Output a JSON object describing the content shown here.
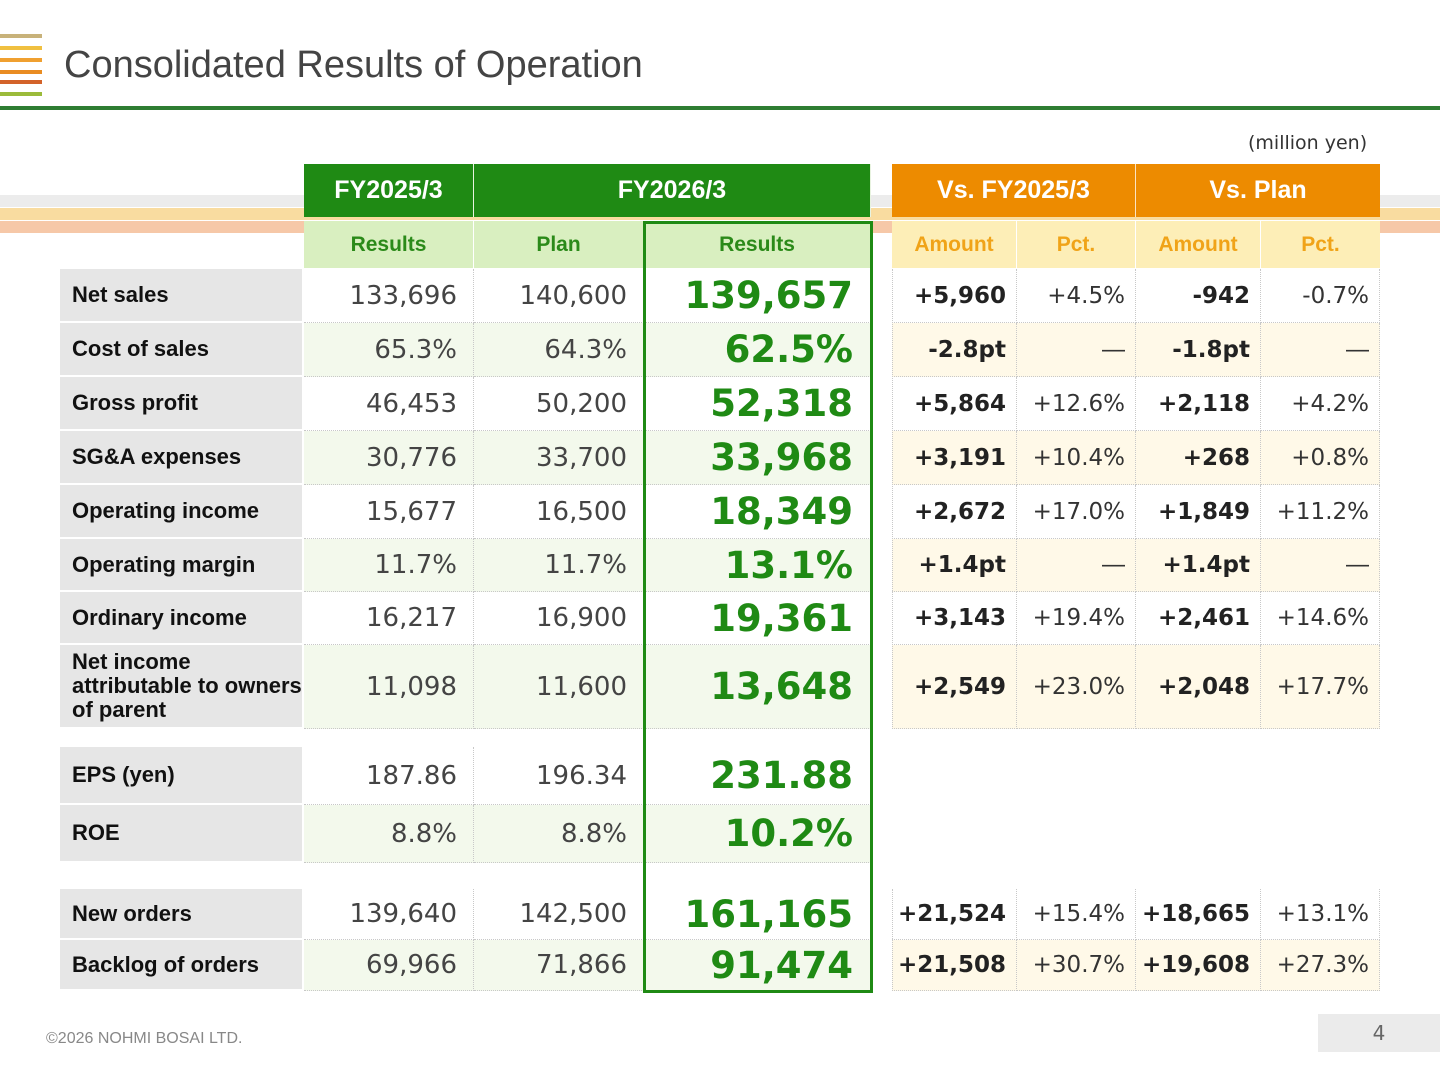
{
  "title": "Consolidated Results of Operation",
  "unit": "(million yen)",
  "footer": "©2026 NOHMI BOSAI LTD.",
  "page_number": "4",
  "colors": {
    "accent_green": "#1f8a14",
    "accent_orange": "#ed8b00",
    "title_rule": "#2e7d32"
  },
  "headers": {
    "fy2025": "FY2025/3",
    "fy2026": "FY2026/3",
    "vs_prev": "Vs. FY2025/3",
    "vs_plan": "Vs. Plan",
    "sub": {
      "results_prev": "Results",
      "plan": "Plan",
      "results_curr": "Results",
      "amount1": "Amount",
      "pct1": "Pct.",
      "amount2": "Amount",
      "pct2": "Pct."
    }
  },
  "rows": [
    {
      "label": "Net sales",
      "prev": "133,696",
      "plan": "140,600",
      "result": "139,657",
      "vs1_amt": "+5,960",
      "vs1_pct": "+4.5%",
      "vs2_amt": "-942",
      "vs2_pct": "-0.7%"
    },
    {
      "label": "Cost of sales",
      "prev": "65.3%",
      "plan": "64.3%",
      "result": "62.5%",
      "vs1_amt": "-2.8pt",
      "vs1_pct": "―",
      "vs2_amt": "-1.8pt",
      "vs2_pct": "―"
    },
    {
      "label": "Gross profit",
      "prev": "46,453",
      "plan": "50,200",
      "result": "52,318",
      "vs1_amt": "+5,864",
      "vs1_pct": "+12.6%",
      "vs2_amt": "+2,118",
      "vs2_pct": "+4.2%"
    },
    {
      "label": "SG&A expenses",
      "prev": "30,776",
      "plan": "33,700",
      "result": "33,968",
      "vs1_amt": "+3,191",
      "vs1_pct": "+10.4%",
      "vs2_amt": "+268",
      "vs2_pct": "+0.8%"
    },
    {
      "label": "Operating income",
      "prev": "15,677",
      "plan": "16,500",
      "result": "18,349",
      "vs1_amt": "+2,672",
      "vs1_pct": "+17.0%",
      "vs2_amt": "+1,849",
      "vs2_pct": "+11.2%"
    },
    {
      "label": "Operating margin",
      "prev": "11.7%",
      "plan": "11.7%",
      "result": "13.1%",
      "vs1_amt": "+1.4pt",
      "vs1_pct": "―",
      "vs2_amt": "+1.4pt",
      "vs2_pct": "―"
    },
    {
      "label": "Ordinary income",
      "prev": "16,217",
      "plan": "16,900",
      "result": "19,361",
      "vs1_amt": "+3,143",
      "vs1_pct": "+19.4%",
      "vs2_amt": "+2,461",
      "vs2_pct": "+14.6%"
    },
    {
      "label": "Net income attributable to owners of parent",
      "prev": "11,098",
      "plan": "11,600",
      "result": "13,648",
      "vs1_amt": "+2,549",
      "vs1_pct": "+23.0%",
      "vs2_amt": "+2,048",
      "vs2_pct": "+17.7%"
    },
    {
      "label": "EPS (yen)",
      "prev": "187.86",
      "plan": "196.34",
      "result": "231.88"
    },
    {
      "label": "ROE",
      "prev": "8.8%",
      "plan": "8.8%",
      "result": "10.2%"
    },
    {
      "label": "New orders",
      "prev": "139,640",
      "plan": "142,500",
      "result": "161,165",
      "vs1_amt": "+21,524",
      "vs1_pct": "+15.4%",
      "vs2_amt": "+18,665",
      "vs2_pct": "+13.1%"
    },
    {
      "label": "Backlog of orders",
      "prev": "69,966",
      "plan": "71,866",
      "result": "91,474",
      "vs1_amt": "+21,508",
      "vs1_pct": "+30.7%",
      "vs2_amt": "+19,608",
      "vs2_pct": "+27.3%"
    }
  ]
}
